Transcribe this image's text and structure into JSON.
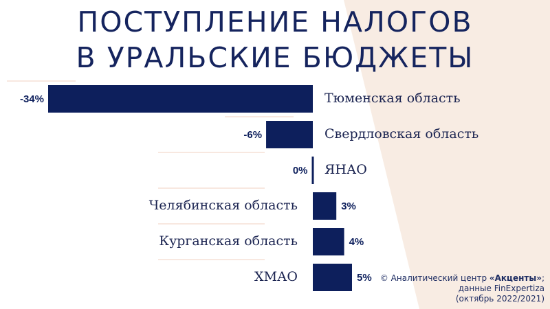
{
  "title": {
    "line1": "ПОСТУПЛЕНИЕ НАЛОГОВ",
    "line2": "В УРАЛЬСКИЕ БЮДЖЕТЫ"
  },
  "chart_data": {
    "type": "bar",
    "orientation": "horizontal",
    "categories": [
      "Тюменская область",
      "Свердловская область",
      "ЯНАО",
      "Челябинская область",
      "Курганская область",
      "ХМАО"
    ],
    "values": [
      -34,
      -6,
      0,
      3,
      4,
      5
    ],
    "value_labels": [
      "-34%",
      "-6%",
      "0%",
      "3%",
      "4%",
      "5%"
    ],
    "unit": "%",
    "xlim": [
      -34,
      5
    ],
    "grid": false,
    "legend": "none",
    "bar_color": "#0d1f5c"
  },
  "credit": {
    "prefix": "©  Аналитический центр ",
    "brand": "«Акценты»",
    "suffix": ";",
    "line2": "данные FinExpertiza",
    "line3": "(октябрь 2022/2021)"
  },
  "colors": {
    "bar": "#0d1f5c",
    "title": "#15245e",
    "background_accent": "#f8ece3",
    "divider": "#f0d0c0"
  }
}
